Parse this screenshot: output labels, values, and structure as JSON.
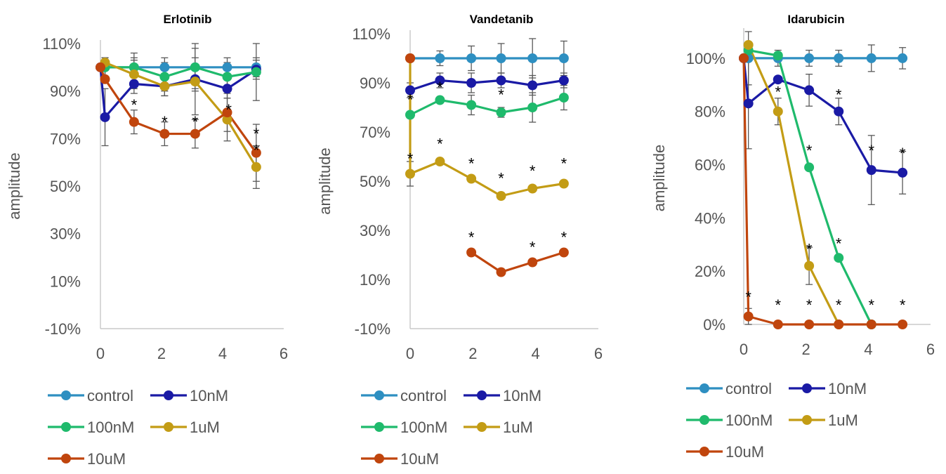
{
  "chart_data": [
    {
      "type": "line",
      "title": "Erlotinib",
      "ylabel": "amplitude",
      "xlim": [
        0,
        6
      ],
      "ylim": [
        -10,
        110
      ],
      "x_ticks": [
        "0",
        "2",
        "4",
        "6"
      ],
      "y_ticks": [
        "-10%",
        "10%",
        "30%",
        "50%",
        "70%",
        "90%",
        "110%"
      ],
      "series": [
        {
          "name": "control",
          "color": "#2e8fc1",
          "points": [
            [
              0.15,
              100
            ],
            [
              1.1,
              100
            ],
            [
              2.1,
              100
            ],
            [
              3.1,
              100
            ],
            [
              4.15,
              100
            ],
            [
              5.1,
              100
            ]
          ],
          "err": [
            4,
            4,
            4,
            4,
            4,
            4
          ]
        },
        {
          "name": "10nM",
          "color": "#1a1aa5",
          "points": [
            [
              0,
              100
            ],
            [
              0.15,
              79
            ],
            [
              1.1,
              93
            ],
            [
              2.1,
              92
            ],
            [
              3.1,
              95
            ],
            [
              4.15,
              91
            ],
            [
              5.1,
              99
            ]
          ],
          "err": [
            0,
            12,
            4,
            4,
            4,
            4,
            4
          ]
        },
        {
          "name": "100nM",
          "color": "#1fba6c",
          "points": [
            [
              0.15,
              100
            ],
            [
              1.1,
              100
            ],
            [
              2.1,
              96
            ],
            [
              3.1,
              100
            ],
            [
              4.15,
              96
            ],
            [
              5.1,
              98
            ]
          ],
          "err": [
            4,
            6,
            6,
            10,
            6,
            12
          ]
        },
        {
          "name": "1uM",
          "color": "#c39c15",
          "points": [
            [
              0.15,
              102
            ],
            [
              1.1,
              97
            ],
            [
              2.1,
              92
            ],
            [
              3.1,
              94
            ],
            [
              4.15,
              78
            ],
            [
              5.1,
              58
            ]
          ],
          "err": [
            2,
            6,
            4,
            14,
            9,
            9
          ]
        },
        {
          "name": "10uM",
          "color": "#c0450d",
          "points": [
            [
              0,
              100
            ],
            [
              0.15,
              95
            ],
            [
              1.1,
              77
            ],
            [
              2.1,
              72
            ],
            [
              3.1,
              72
            ],
            [
              4.15,
              81
            ],
            [
              5.1,
              64
            ]
          ],
          "err": [
            0,
            0,
            5,
            5,
            6,
            8,
            12
          ]
        }
      ],
      "annotations": [
        {
          "text": "*",
          "x": 1.1,
          "y": 86
        },
        {
          "text": "*",
          "x": 2.1,
          "y": 79
        },
        {
          "text": "*",
          "x": 3.1,
          "y": 79
        },
        {
          "text": "*",
          "x": 4.2,
          "y": 84
        },
        {
          "text": "*",
          "x": 5.1,
          "y": 74
        },
        {
          "text": "*",
          "x": 5.1,
          "y": 67
        }
      ]
    },
    {
      "type": "line",
      "title": "Vandetanib",
      "ylabel": "amplitude",
      "xlim": [
        0,
        6
      ],
      "ylim": [
        -10,
        110
      ],
      "x_ticks": [
        "0",
        "2",
        "4",
        "6"
      ],
      "y_ticks": [
        "-10%",
        "10%",
        "30%",
        "50%",
        "70%",
        "90%",
        "110%"
      ],
      "series": [
        {
          "name": "control",
          "color": "#2e8fc1",
          "points": [
            [
              0,
              100
            ],
            [
              0.95,
              100
            ],
            [
              1.95,
              100
            ],
            [
              2.9,
              100
            ],
            [
              3.9,
              100
            ],
            [
              4.9,
              100
            ]
          ],
          "err": [
            0,
            3,
            5,
            6,
            8,
            7
          ]
        },
        {
          "name": "10nM",
          "color": "#1a1aa5",
          "points": [
            [
              0,
              87
            ],
            [
              0.95,
              91
            ],
            [
              1.95,
              90
            ],
            [
              2.9,
              91
            ],
            [
              3.9,
              89
            ],
            [
              4.9,
              91
            ]
          ],
          "err": [
            3,
            3,
            4,
            3,
            4,
            3
          ]
        },
        {
          "name": "100nM",
          "color": "#1fba6c",
          "points": [
            [
              0,
              77
            ],
            [
              0.95,
              83
            ],
            [
              1.95,
              81
            ],
            [
              2.9,
              78
            ],
            [
              3.9,
              80
            ],
            [
              4.9,
              84
            ]
          ],
          "err": [
            0,
            0,
            4,
            2,
            6,
            5
          ]
        },
        {
          "name": "1uM",
          "color": "#c39c15",
          "points": [
            [
              0,
              100
            ],
            [
              0,
              53
            ],
            [
              0.95,
              58
            ],
            [
              1.95,
              51
            ],
            [
              2.9,
              44
            ],
            [
              3.9,
              47
            ],
            [
              4.9,
              49
            ]
          ],
          "err": [
            0,
            5,
            0,
            0,
            0,
            0,
            0
          ]
        },
        {
          "name": "10uM",
          "color": "#c0450d",
          "points": [
            [
              0,
              100
            ],
            [
              0,
              100
            ]
          ],
          "err": [
            0,
            0
          ]
        },
        {
          "name": "10uM",
          "color": "#c0450d",
          "points": [
            [
              1.95,
              21
            ],
            [
              2.9,
              13
            ],
            [
              3.9,
              17
            ],
            [
              4.9,
              21
            ]
          ],
          "err": [
            0,
            0,
            0,
            0
          ]
        }
      ],
      "annotations": [
        {
          "text": "*",
          "x": 0.95,
          "y": 90
        },
        {
          "text": "*",
          "x": 2.9,
          "y": 87
        },
        {
          "text": "*",
          "x": 0,
          "y": 85
        },
        {
          "text": "*",
          "x": 0,
          "y": 61
        },
        {
          "text": "*",
          "x": 0.95,
          "y": 67
        },
        {
          "text": "*",
          "x": 1.95,
          "y": 59
        },
        {
          "text": "*",
          "x": 2.9,
          "y": 53
        },
        {
          "text": "*",
          "x": 3.9,
          "y": 56
        },
        {
          "text": "*",
          "x": 4.9,
          "y": 59
        },
        {
          "text": "*",
          "x": 1.95,
          "y": 29
        },
        {
          "text": "*",
          "x": 3.9,
          "y": 25
        },
        {
          "text": "*",
          "x": 4.9,
          "y": 29
        }
      ]
    },
    {
      "type": "line",
      "title": "Idarubicin",
      "ylabel": "amplitude",
      "xlim": [
        0,
        6
      ],
      "ylim": [
        0,
        110
      ],
      "x_ticks": [
        "0",
        "2",
        "4",
        "6"
      ],
      "y_ticks": [
        "0%",
        "20%",
        "40%",
        "60%",
        "80%",
        "100%"
      ],
      "series": [
        {
          "name": "control",
          "color": "#2e8fc1",
          "points": [
            [
              0,
              100
            ],
            [
              0.15,
              100
            ],
            [
              1.1,
              100
            ],
            [
              2.1,
              100
            ],
            [
              3.05,
              100
            ],
            [
              4.1,
              100
            ],
            [
              5.1,
              100
            ]
          ],
          "err": [
            0,
            10,
            3,
            3,
            3,
            5,
            4
          ]
        },
        {
          "name": "10nM",
          "color": "#1a1aa5",
          "points": [
            [
              0,
              100
            ],
            [
              0.15,
              83
            ],
            [
              1.1,
              92
            ],
            [
              2.1,
              88
            ],
            [
              3.05,
              80
            ],
            [
              4.1,
              58
            ],
            [
              5.1,
              57
            ]
          ],
          "err": [
            0,
            17,
            0,
            6,
            5,
            13,
            8
          ]
        },
        {
          "name": "100nM",
          "color": "#1fba6c",
          "points": [
            [
              0.15,
              103
            ],
            [
              1.1,
              101
            ],
            [
              2.1,
              59
            ],
            [
              3.05,
              25
            ],
            [
              4.1,
              0
            ]
          ],
          "err": [
            0,
            0,
            0,
            0,
            0
          ]
        },
        {
          "name": "1uM",
          "color": "#c39c15",
          "points": [
            [
              0.15,
              105
            ],
            [
              1.1,
              80
            ],
            [
              2.1,
              22
            ],
            [
              3.05,
              0
            ]
          ],
          "err": [
            0,
            5,
            7,
            0
          ]
        },
        {
          "name": "10uM",
          "color": "#c0450d",
          "points": [
            [
              0,
              100
            ],
            [
              0.15,
              3
            ],
            [
              1.1,
              0
            ],
            [
              2.1,
              0
            ],
            [
              3.05,
              0
            ],
            [
              4.1,
              0
            ],
            [
              5.1,
              0
            ]
          ],
          "err": [
            0,
            3,
            0,
            0,
            0,
            0,
            0
          ]
        }
      ],
      "annotations": [
        {
          "text": "*",
          "x": 1.1,
          "y": 89
        },
        {
          "text": "*",
          "x": 3.05,
          "y": 88
        },
        {
          "text": "*",
          "x": 2.1,
          "y": 67
        },
        {
          "text": "*",
          "x": 4.1,
          "y": 67
        },
        {
          "text": "*",
          "x": 5.1,
          "y": 66
        },
        {
          "text": "*",
          "x": 3.05,
          "y": 32
        },
        {
          "text": "*",
          "x": 2.1,
          "y": 30
        },
        {
          "text": "*",
          "x": 0.15,
          "y": 12
        },
        {
          "text": "*",
          "x": 1.1,
          "y": 9
        },
        {
          "text": "*",
          "x": 2.1,
          "y": 9
        },
        {
          "text": "*",
          "x": 3.05,
          "y": 9
        },
        {
          "text": "*",
          "x": 4.1,
          "y": 9
        },
        {
          "text": "*",
          "x": 5.1,
          "y": 9
        }
      ]
    }
  ],
  "legend_items": [
    "control",
    "10nM",
    "100nM",
    "1uM",
    "10uM"
  ]
}
